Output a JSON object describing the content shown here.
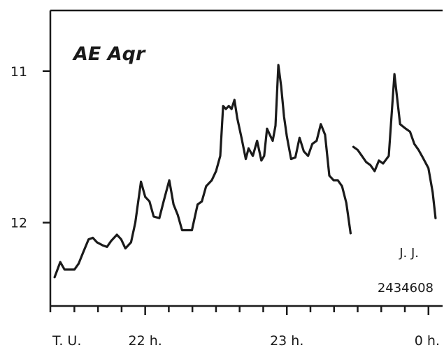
{
  "chart_data": {
    "type": "line",
    "title": "AE Aqr",
    "xlabel": "",
    "ylabel": "",
    "x_axis": {
      "tick_labels": [
        "T. U.",
        "22 h.",
        "23 h.",
        "0 h."
      ],
      "label_values": [
        21.33,
        22.0,
        23.0,
        24.0
      ],
      "minor_tick_step_h": 0.1667,
      "xlim": [
        21.33,
        24.1
      ]
    },
    "y_axis": {
      "inverted": true,
      "ticks": [
        11,
        12
      ],
      "tick_labels": [
        "11",
        "12"
      ],
      "ylim": [
        12.55,
        10.6
      ]
    },
    "grid": false,
    "legend": "none",
    "annotations": [
      "J. J.",
      "2434608"
    ],
    "series": [
      {
        "segments": [
          {
            "x": [
              21.36,
              21.4,
              21.43,
              21.46,
              21.5,
              21.53,
              21.56,
              21.6,
              21.63,
              21.66,
              21.7,
              21.73,
              21.76,
              21.8,
              21.83,
              21.86,
              21.9,
              21.93,
              21.97,
              22.0,
              22.03,
              22.06,
              22.1,
              22.13,
              22.17,
              22.2,
              22.23,
              22.26,
              22.3,
              22.33,
              22.37,
              22.4,
              22.43,
              22.47,
              22.5,
              22.53,
              22.55,
              22.57,
              22.59,
              22.61,
              22.63,
              22.65,
              22.68,
              22.71,
              22.73,
              22.76,
              22.79,
              22.82,
              22.84,
              22.86,
              22.88,
              22.9,
              22.92,
              22.94,
              22.96,
              22.98,
              23.0,
              23.03,
              23.06,
              23.09,
              23.12,
              23.15,
              23.18,
              23.21,
              23.24,
              23.27,
              23.3,
              23.33,
              23.36,
              23.39,
              23.42,
              23.45
            ],
            "y": [
              12.36,
              12.26,
              12.31,
              12.31,
              12.31,
              12.27,
              12.2,
              12.11,
              12.1,
              12.13,
              12.15,
              12.16,
              12.12,
              12.08,
              12.11,
              12.17,
              12.13,
              12.0,
              11.73,
              11.83,
              11.86,
              11.96,
              11.97,
              11.86,
              11.72,
              11.88,
              11.95,
              12.05,
              12.05,
              12.05,
              11.88,
              11.86,
              11.76,
              11.72,
              11.66,
              11.56,
              11.23,
              11.25,
              11.23,
              11.25,
              11.19,
              11.31,
              11.44,
              11.58,
              11.51,
              11.56,
              11.46,
              11.59,
              11.56,
              11.38,
              11.42,
              11.46,
              11.36,
              10.96,
              11.1,
              11.3,
              11.43,
              11.58,
              11.57,
              11.44,
              11.53,
              11.56,
              11.48,
              11.46,
              11.35,
              11.42,
              11.69,
              11.72,
              11.72,
              11.76,
              11.87,
              12.07
            ]
          },
          {
            "x": [
              23.47,
              23.5,
              23.53,
              23.56,
              23.59,
              23.62,
              23.65,
              23.68,
              23.72,
              23.76,
              23.8,
              23.84,
              23.87,
              23.9,
              23.93,
              23.96,
              24.0,
              24.03,
              24.05
            ],
            "y": [
              11.5,
              11.52,
              11.56,
              11.6,
              11.62,
              11.66,
              11.59,
              11.61,
              11.56,
              11.02,
              11.35,
              11.38,
              11.4,
              11.48,
              11.52,
              11.57,
              11.64,
              11.8,
              11.97
            ]
          }
        ]
      }
    ]
  }
}
